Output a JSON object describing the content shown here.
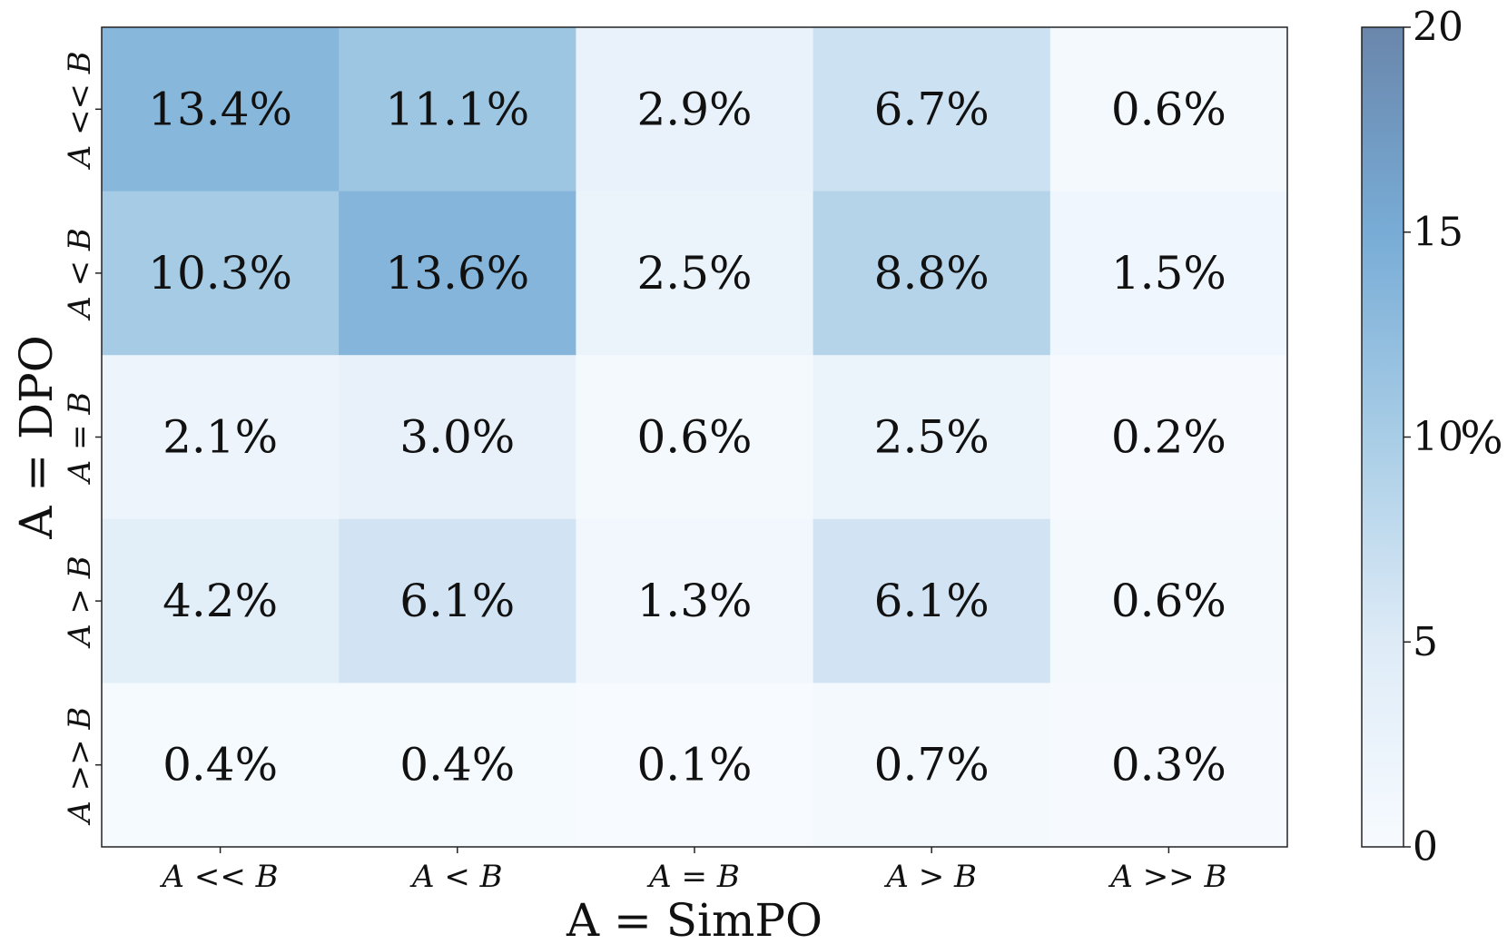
{
  "chart_data": {
    "type": "heatmap",
    "x_categories": [
      "A << B",
      "A < B",
      "A = B",
      "A > B",
      "A >> B"
    ],
    "y_categories": [
      "A << B",
      "A < B",
      "A = B",
      "A > B",
      "A >> B"
    ],
    "values": [
      [
        13.4,
        11.1,
        2.9,
        6.7,
        0.6
      ],
      [
        10.3,
        13.6,
        2.5,
        8.8,
        1.5
      ],
      [
        2.1,
        3.0,
        0.6,
        2.5,
        0.2
      ],
      [
        4.2,
        6.1,
        1.3,
        6.1,
        0.6
      ],
      [
        0.4,
        0.4,
        0.1,
        0.7,
        0.3
      ]
    ],
    "cell_labels": [
      [
        "13.4%",
        "11.1%",
        "2.9%",
        "6.7%",
        "0.6%"
      ],
      [
        "10.3%",
        "13.6%",
        "2.5%",
        "8.8%",
        "1.5%"
      ],
      [
        "2.1%",
        "3.0%",
        "0.6%",
        "2.5%",
        "0.2%"
      ],
      [
        "4.2%",
        "6.1%",
        "1.3%",
        "6.1%",
        "0.6%"
      ],
      [
        "0.4%",
        "0.4%",
        "0.1%",
        "0.7%",
        "0.3%"
      ]
    ],
    "xlabel": "A = SimPO",
    "ylabel": "A = DPO",
    "colorbar": {
      "label": "%",
      "range": [
        0,
        20
      ],
      "ticks": [
        0,
        5,
        10,
        15,
        20
      ],
      "tick_labels": [
        "0",
        "5",
        "10",
        "15",
        "20"
      ],
      "color_low": "#f7fbff",
      "color_high": "#4a78b0"
    },
    "colormap": "Blues"
  }
}
